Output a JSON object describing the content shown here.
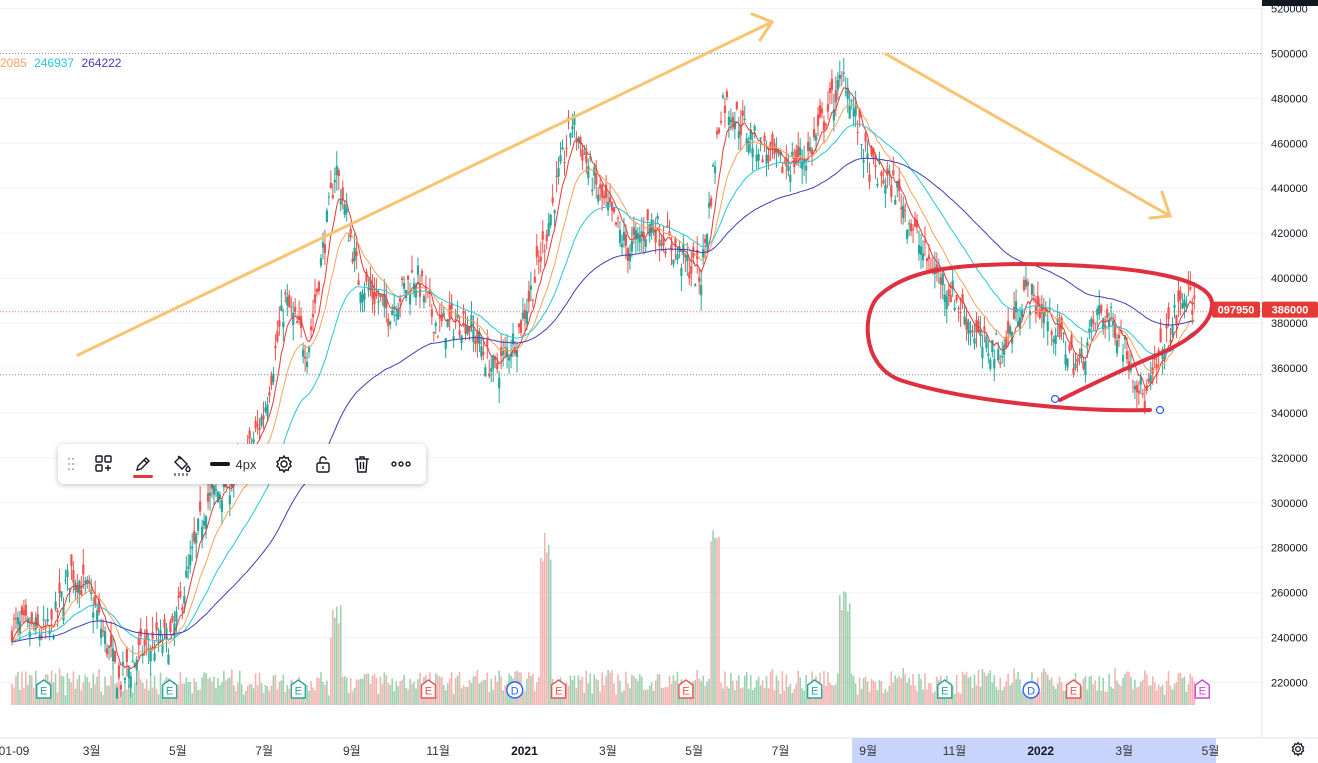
{
  "ma_legend": [
    {
      "value": "2085",
      "color": "#f7a35c"
    },
    {
      "value": "246937",
      "color": "#26c6da"
    },
    {
      "value": "264222",
      "color": "#3f3fb8"
    }
  ],
  "price_badges": [
    {
      "value": "097950",
      "color": "#e53935"
    },
    {
      "value": "386000",
      "color": "#e53935"
    }
  ],
  "toolbar": {
    "width_label": "4px"
  },
  "colors": {
    "up": "#26a69a",
    "down": "#ef5350",
    "ma_red": "#e53935",
    "ma_orange": "#f7a35c",
    "ma_cyan": "#26c6da",
    "ma_navy": "#3f3fb8",
    "annotation_arrow": "#f8c471",
    "annotation_circle": "#e03040"
  },
  "chart_data": {
    "type": "candlestick",
    "x_axis": {
      "labels": [
        "01-09",
        "3월",
        "5월",
        "7월",
        "9월",
        "11월",
        "2021",
        "3월",
        "5월",
        "7월",
        "9월",
        "11월",
        "2022",
        "3월",
        "5월"
      ],
      "start": "2020-01-09",
      "end": "2022-04"
    },
    "y_axis": {
      "ticks": [
        220000,
        240000,
        260000,
        280000,
        300000,
        320000,
        340000,
        360000,
        380000,
        400000,
        420000,
        440000,
        460000,
        480000,
        500000,
        520000
      ],
      "range": [
        210000,
        522000
      ],
      "position": "right"
    },
    "price_path": [
      [
        "2020-01-09",
        245000
      ],
      [
        "2020-02-05",
        242000
      ],
      [
        "2020-02-20",
        270000
      ],
      [
        "2020-03-05",
        258000
      ],
      [
        "2020-03-25",
        220000
      ],
      [
        "2020-04-10",
        235000
      ],
      [
        "2020-05-01",
        240000
      ],
      [
        "2020-05-25",
        300000
      ],
      [
        "2020-06-20",
        315000
      ],
      [
        "2020-07-05",
        340000
      ],
      [
        "2020-07-20",
        390000
      ],
      [
        "2020-08-05",
        368000
      ],
      [
        "2020-08-25",
        450000
      ],
      [
        "2020-09-10",
        400000
      ],
      [
        "2020-10-01",
        385000
      ],
      [
        "2020-10-20",
        402000
      ],
      [
        "2020-11-05",
        378000
      ],
      [
        "2020-11-25",
        382000
      ],
      [
        "2020-12-15",
        358000
      ],
      [
        "2021-01-01",
        376000
      ],
      [
        "2021-01-15",
        405000
      ],
      [
        "2021-02-08",
        470000
      ],
      [
        "2021-02-25",
        440000
      ],
      [
        "2021-03-20",
        412000
      ],
      [
        "2021-04-05",
        425000
      ],
      [
        "2021-04-25",
        410000
      ],
      [
        "2021-05-10",
        400000
      ],
      [
        "2021-05-25",
        480000
      ],
      [
        "2021-06-15",
        462000
      ],
      [
        "2021-07-05",
        450000
      ],
      [
        "2021-07-25",
        455000
      ],
      [
        "2021-08-10",
        478000
      ],
      [
        "2021-08-20",
        490000
      ],
      [
        "2021-09-05",
        450000
      ],
      [
        "2021-09-25",
        440000
      ],
      [
        "2021-10-15",
        410000
      ],
      [
        "2021-11-05",
        392000
      ],
      [
        "2021-11-25",
        370000
      ],
      [
        "2021-12-10",
        368000
      ],
      [
        "2021-12-25",
        395000
      ],
      [
        "2022-01-15",
        378000
      ],
      [
        "2022-02-01",
        360000
      ],
      [
        "2022-02-15",
        385000
      ],
      [
        "2022-03-01",
        378000
      ],
      [
        "2022-03-20",
        345000
      ],
      [
        "2022-04-05",
        375000
      ],
      [
        "2022-04-18",
        393000
      ],
      [
        "2022-04-25",
        386000
      ]
    ],
    "volume_peaks": [
      [
        "2021-01-20",
        288000
      ],
      [
        "2021-05-20",
        292000
      ],
      [
        "2021-08-20",
        262000
      ],
      [
        "2020-08-25",
        255000
      ]
    ],
    "earnings_markers": [
      {
        "date": "2020-01-30",
        "label": "E",
        "color": "#26a69a"
      },
      {
        "date": "2020-04-28",
        "label": "E",
        "color": "#26a69a"
      },
      {
        "date": "2020-07-28",
        "label": "E",
        "color": "#26a69a"
      },
      {
        "date": "2020-10-28",
        "label": "E",
        "color": "#ef5350"
      },
      {
        "date": "2020-12-28",
        "label": "D",
        "color": "#2962ff"
      },
      {
        "date": "2021-01-28",
        "label": "E",
        "color": "#ef5350"
      },
      {
        "date": "2021-04-28",
        "label": "E",
        "color": "#ef5350"
      },
      {
        "date": "2021-07-28",
        "label": "E",
        "color": "#26a69a"
      },
      {
        "date": "2021-10-28",
        "label": "E",
        "color": "#26a69a"
      },
      {
        "date": "2021-12-28",
        "label": "D",
        "color": "#2962ff"
      },
      {
        "date": "2022-01-27",
        "label": "E",
        "color": "#ef5350"
      },
      {
        "date": "2022-04-28",
        "label": "E",
        "color": "#d63ee0"
      }
    ],
    "horizontal_lines": [
      500000,
      385000,
      357000
    ],
    "highlighted_x_range": [
      "2021-09",
      "2022-04"
    ]
  }
}
